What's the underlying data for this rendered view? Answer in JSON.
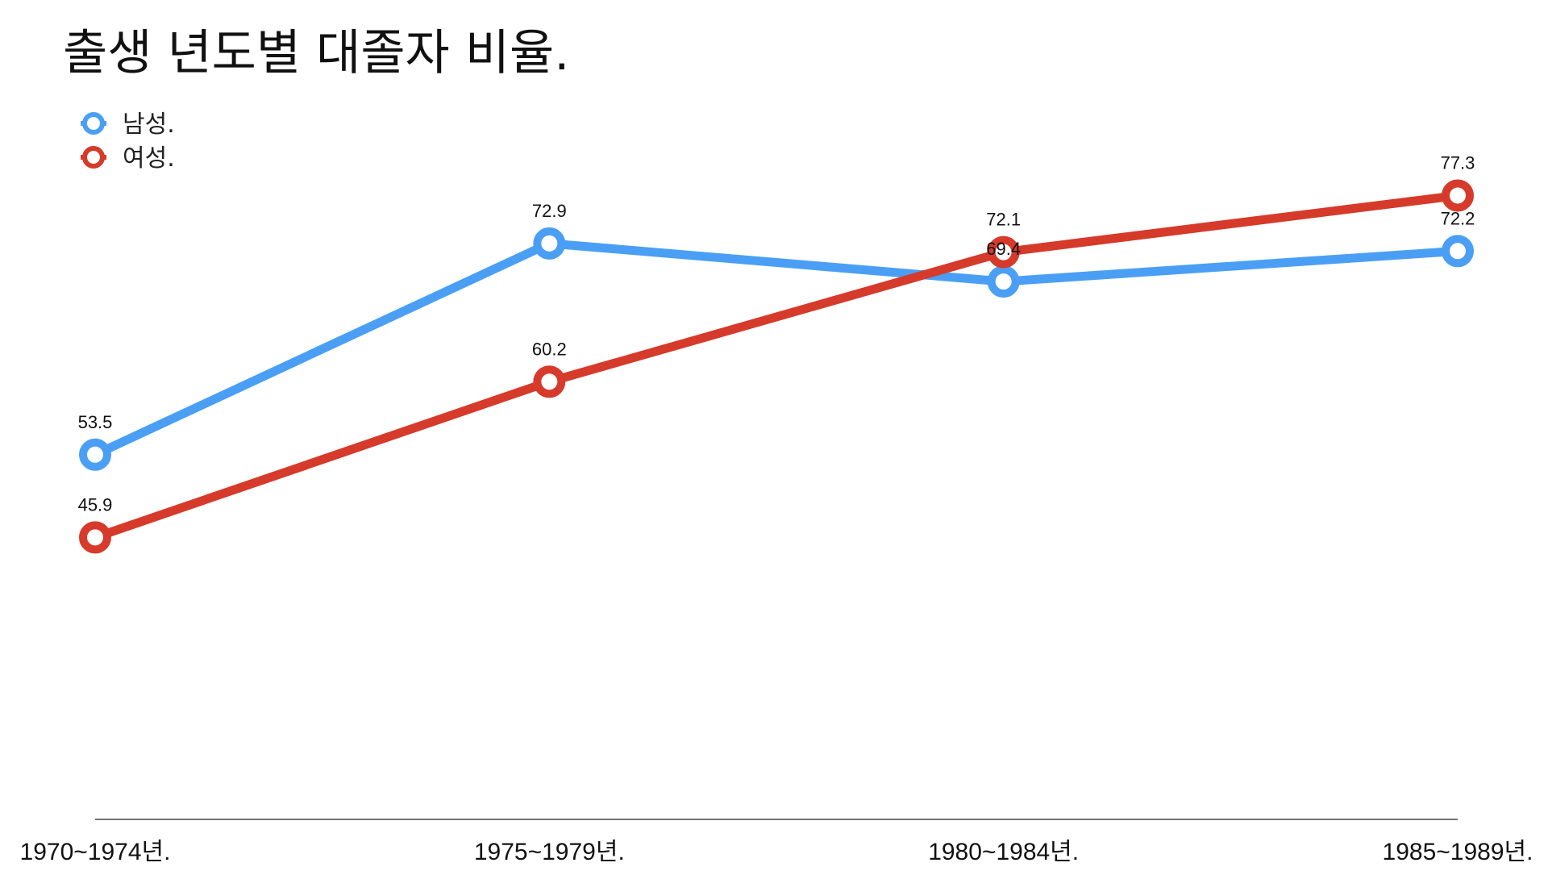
{
  "chart_data": {
    "type": "line",
    "title": "출생 년도별 대졸자 비율.",
    "categories": [
      "1970~1974년.",
      "1975~1979년.",
      "1980~1984년.",
      "1985~1989년."
    ],
    "series": [
      {
        "name": "남성.",
        "color": "#4a9ff5",
        "values": [
          53.5,
          72.9,
          69.4,
          72.2
        ]
      },
      {
        "name": "여성.",
        "color": "#d63a2a",
        "values": [
          45.9,
          60.2,
          72.1,
          77.3
        ]
      }
    ],
    "xlabel": "",
    "ylabel": "",
    "ylim": [
      20,
      80
    ],
    "grid": false,
    "legend": "top-left",
    "data_labels": true
  }
}
